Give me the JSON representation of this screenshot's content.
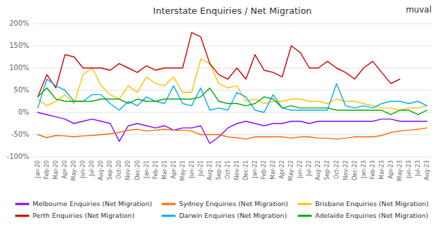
{
  "chart_data": {
    "type": "line",
    "title": "Interstate Enquiries / Net Migration",
    "annotations": [
      "muval"
    ],
    "categories": [
      "Jan-20",
      "Feb-20",
      "Mar-20",
      "Apr-20",
      "May-20",
      "Jun-20",
      "Jul-20",
      "Aug-20",
      "Sep-20",
      "Oct-20",
      "Nov-20",
      "Dec-20",
      "Jan-21",
      "Feb-21",
      "Mar-21",
      "Apr-21",
      "May-21",
      "Jun-21",
      "Jul-21",
      "Aug-21",
      "Sep-21",
      "Oct-21",
      "Nov-21",
      "Dec-21",
      "Jan-22",
      "Feb-22",
      "Mar-22",
      "Apr-22",
      "May-22",
      "Jun-22",
      "Jul-22",
      "Aug-22",
      "Sep-22",
      "Oct-22",
      "Nov-22",
      "Dec-22",
      "Jan-23",
      "Feb-23",
      "Mar-23",
      "Apr-23",
      "May-23",
      "Jun-23",
      "Jul-23",
      "Aug-23"
    ],
    "series": [
      {
        "name": "Melbourne Enquiries (Net Migration)",
        "color": "#8B00FF",
        "values": [
          0,
          -5,
          -10,
          -15,
          -25,
          -20,
          -15,
          -20,
          -25,
          -65,
          -30,
          -25,
          -30,
          -35,
          -30,
          -40,
          -35,
          -35,
          -30,
          -70,
          -55,
          -35,
          -25,
          -20,
          -25,
          -30,
          -25,
          -25,
          -20,
          -20,
          -25,
          -20,
          -20,
          -20,
          -20,
          -20,
          -20,
          -20,
          -15,
          -15,
          -20,
          -20,
          -20,
          -20
        ]
      },
      {
        "name": "Sydney Enquiries (Net Migration)",
        "color": "#FF6600",
        "values": [
          -50,
          -57,
          -52,
          -53,
          -55,
          -53,
          -52,
          -50,
          -48,
          -45,
          -40,
          -38,
          -42,
          -40,
          -38,
          -40,
          -40,
          -42,
          -50,
          -50,
          -50,
          -55,
          -57,
          -60,
          -55,
          -55,
          -55,
          -55,
          -58,
          -55,
          -55,
          -58,
          -58,
          -60,
          -58,
          -55,
          -55,
          -55,
          -52,
          -45,
          -42,
          -40,
          -38,
          -35
        ]
      },
      {
        "name": "Brisbane Enquiries (Net Migration)",
        "color": "#FFC000",
        "values": [
          30,
          15,
          25,
          40,
          20,
          85,
          100,
          60,
          40,
          30,
          60,
          45,
          80,
          65,
          60,
          80,
          45,
          45,
          120,
          110,
          65,
          55,
          60,
          25,
          30,
          20,
          25,
          25,
          30,
          30,
          25,
          25,
          20,
          30,
          25,
          25,
          20,
          15,
          10,
          10,
          5,
          10,
          10,
          15
        ]
      },
      {
        "name": "Perth Enquiries (Net Migration)",
        "color": "#CC0000",
        "values": [
          35,
          85,
          55,
          130,
          125,
          100,
          100,
          100,
          95,
          110,
          100,
          90,
          105,
          95,
          100,
          100,
          100,
          180,
          170,
          110,
          85,
          75,
          100,
          75,
          130,
          95,
          90,
          80,
          150,
          135,
          100,
          100,
          115,
          100,
          90,
          75,
          100,
          115,
          90,
          65,
          75,
          null,
          null,
          null
        ]
      },
      {
        "name": "Darwin Enquiries (Net Migration)",
        "color": "#00AAFF",
        "values": [
          10,
          75,
          60,
          50,
          25,
          25,
          40,
          40,
          20,
          5,
          25,
          15,
          35,
          25,
          20,
          60,
          20,
          15,
          55,
          5,
          10,
          5,
          45,
          35,
          5,
          0,
          40,
          10,
          5,
          5,
          5,
          5,
          5,
          65,
          15,
          10,
          15,
          10,
          20,
          25,
          25,
          20,
          25,
          15
        ]
      },
      {
        "name": "Adelaide Enquiries (Net Migration)",
        "color": "#00AA00",
        "values": [
          35,
          55,
          30,
          25,
          25,
          25,
          25,
          30,
          30,
          30,
          20,
          30,
          25,
          25,
          30,
          30,
          30,
          30,
          35,
          55,
          25,
          20,
          20,
          15,
          20,
          35,
          30,
          10,
          15,
          10,
          10,
          10,
          10,
          5,
          5,
          5,
          5,
          5,
          5,
          -5,
          5,
          5,
          -5,
          5
        ]
      }
    ],
    "ylim": [
      -100,
      200
    ],
    "yticks": [
      {
        "value": -100,
        "label": "-100%"
      },
      {
        "value": -50,
        "label": "-50%"
      },
      {
        "value": 0,
        "label": "0%"
      },
      {
        "value": 50,
        "label": "50%"
      },
      {
        "value": 100,
        "label": "100%"
      },
      {
        "value": 150,
        "label": "150%"
      },
      {
        "value": 200,
        "label": "200%"
      }
    ],
    "grid": true,
    "legend": "bottom"
  }
}
